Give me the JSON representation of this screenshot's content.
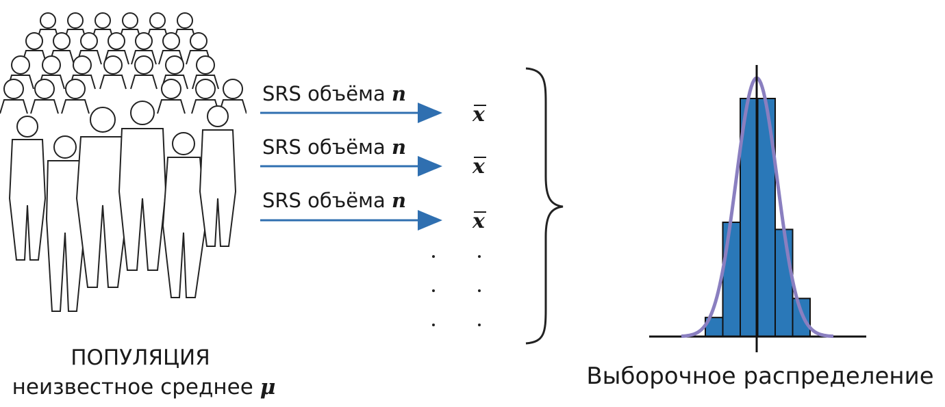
{
  "population": {
    "title": "ПОПУЛЯЦИЯ",
    "subtitle": "неизвестное среднее",
    "mean_symbol": "μ"
  },
  "samples": [
    {
      "label": "SRS объёма",
      "size_symbol": "n",
      "stat_symbol": "x"
    },
    {
      "label": "SRS объёма",
      "size_symbol": "n",
      "stat_symbol": "x"
    },
    {
      "label": "SRS объёма",
      "size_symbol": "n",
      "stat_symbol": "x"
    }
  ],
  "distribution": {
    "label": "Выборочное распределение",
    "histogram_heights": [
      0.08,
      0.48,
      1.0,
      1.0,
      0.45,
      0.16
    ],
    "colors": {
      "bars": "#2a78b8",
      "curve": "#8a7fc0",
      "arrow": "#2f6fb0",
      "line": "#111111"
    }
  }
}
